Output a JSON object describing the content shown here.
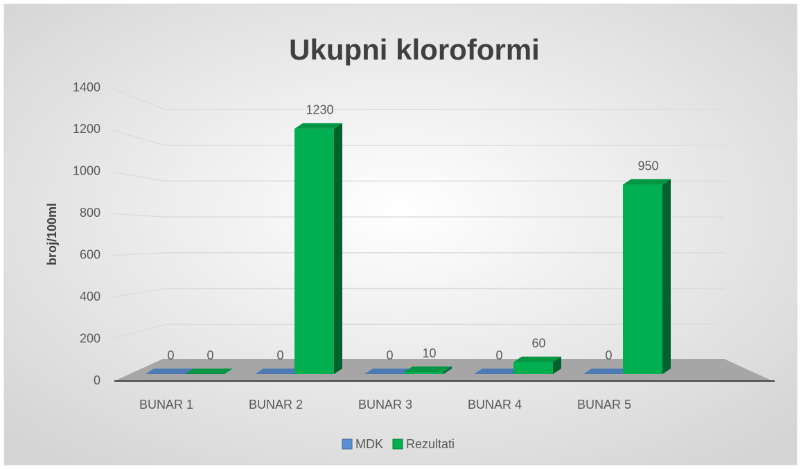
{
  "chart_data": {
    "type": "bar3d",
    "title": "Ukupni kloroformi",
    "y_label": "broj/100ml",
    "categories": [
      "BUNAR 1",
      "BUNAR 2",
      "BUNAR 3",
      "BUNAR 4",
      "BUNAR 5"
    ],
    "series": [
      {
        "name": "MDK",
        "color": "#5b8fd4",
        "values": [
          0,
          0,
          0,
          0,
          0
        ]
      },
      {
        "name": "Rezultati",
        "color": "#00b050",
        "values": [
          0,
          1230,
          10,
          60,
          950
        ]
      }
    ],
    "ylim": [
      0,
      1400
    ],
    "yticks": [
      0,
      200,
      400,
      600,
      800,
      1000,
      1200,
      1400
    ],
    "grid": true,
    "legend": "bottom"
  }
}
